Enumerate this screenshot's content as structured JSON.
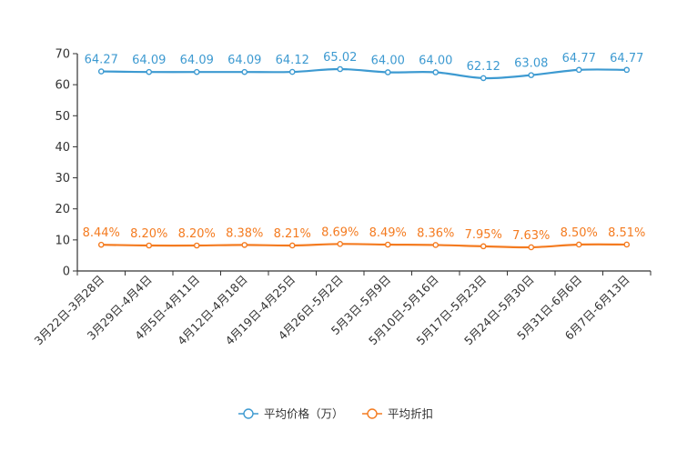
{
  "chart_data": {
    "type": "line",
    "categories": [
      "3月22日-3月28日",
      "3月29日-4月4日",
      "4月5日-4月11日",
      "4月12日-4月18日",
      "4月19日-4月25日",
      "4月26日-5月2日",
      "5月3日-5月9日",
      "5月10日-5月16日",
      "5月17日-5月23日",
      "5月24日-5月30日",
      "5月31日-6月6日",
      "6月7日-6月13日"
    ],
    "ylim": [
      0,
      70
    ],
    "yticks": [
      0,
      10,
      20,
      30,
      40,
      50,
      60,
      70
    ],
    "series": [
      {
        "name": "平均价格（万）",
        "color": "#3d9ad1",
        "values": [
          64.27,
          64.09,
          64.09,
          64.09,
          64.12,
          65.02,
          64.0,
          64.0,
          62.12,
          63.08,
          64.77,
          64.77
        ],
        "labels": [
          "64.27",
          "64.09",
          "64.09",
          "64.09",
          "64.12",
          "65.02",
          "64.00",
          "64.00",
          "62.12",
          "63.08",
          "64.77",
          "64.77"
        ]
      },
      {
        "name": "平均折扣",
        "color": "#f47b20",
        "values": [
          8.44,
          8.2,
          8.2,
          8.38,
          8.21,
          8.69,
          8.49,
          8.36,
          7.95,
          7.63,
          8.5,
          8.51
        ],
        "labels": [
          "8.44%",
          "8.20%",
          "8.20%",
          "8.38%",
          "8.21%",
          "8.69%",
          "8.49%",
          "8.36%",
          "7.95%",
          "7.63%",
          "8.50%",
          "8.51%"
        ]
      }
    ]
  }
}
